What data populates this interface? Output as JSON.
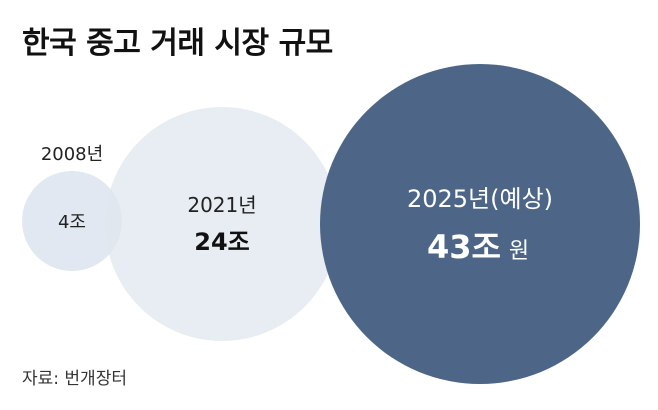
{
  "title": "한국 중고 거래 시장 규모",
  "source": "자료: 번개장터",
  "chart_data": {
    "type": "bubble",
    "title": "한국 중고 거래 시장 규모",
    "unit": "원",
    "series": [
      {
        "year_label": "2008년",
        "value_label": "4조",
        "value": 4,
        "color": "#dfe6ef"
      },
      {
        "year_label": "2021년",
        "value_label": "24조",
        "value": 24,
        "color": "#dfe6ef"
      },
      {
        "year_label": "2025년(예상)",
        "value_label": "43조",
        "value": 43,
        "unit_label": "원",
        "color": "#4d6688"
      }
    ]
  }
}
